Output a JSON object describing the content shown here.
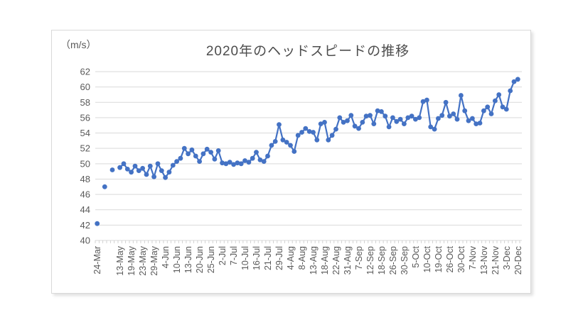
{
  "chart_data": {
    "type": "line",
    "title": "2020年のヘッドスピードの推移",
    "unit_label": "（m/s）",
    "ylim": [
      40,
      62
    ],
    "ytick_step": 2,
    "grid": true,
    "legend_position": "none",
    "x_label_interval": 3,
    "x_tick_labels": [
      "24-Mar",
      "",
      "13-May",
      "19-May",
      "23-May",
      "29-May",
      "4-Jun",
      "10-Jun",
      "13-Jun",
      "20-Jun",
      "25-Jun",
      "2-Jul",
      "7-Jul",
      "10-Jul",
      "16-Jul",
      "21-Jul",
      "29-Jul",
      "4-Aug",
      "8-Aug",
      "13-Aug",
      "18-Aug",
      "22-Aug",
      "31-Aug",
      "7-Sep",
      "12-Sep",
      "18-Sep",
      "26-Sep",
      "30-Sep",
      "5-Oct",
      "10-Oct",
      "19-Oct",
      "26-Oct",
      "30-Oct",
      "7-Nov",
      "13-Nov",
      "21-Nov",
      "3-Dec",
      "20-Dec"
    ],
    "values": [
      42.2,
      null,
      47.0,
      null,
      49.2,
      null,
      49.5,
      50.0,
      49.3,
      48.9,
      49.7,
      49.1,
      49.4,
      48.6,
      49.7,
      48.3,
      50.0,
      49.1,
      48.2,
      48.9,
      49.8,
      50.3,
      50.7,
      52.0,
      51.3,
      51.8,
      51.0,
      50.3,
      51.3,
      51.9,
      51.5,
      50.6,
      51.7,
      50.1,
      50.0,
      50.2,
      49.9,
      50.1,
      50.0,
      50.4,
      50.2,
      50.7,
      51.5,
      50.5,
      50.3,
      51.0,
      52.4,
      52.9,
      55.1,
      53.1,
      52.8,
      52.4,
      51.6,
      53.7,
      54.1,
      54.6,
      54.2,
      54.1,
      53.1,
      55.2,
      55.4,
      53.1,
      53.7,
      54.5,
      56.0,
      55.4,
      55.6,
      56.3,
      54.9,
      54.6,
      55.4,
      56.2,
      56.3,
      55.2,
      56.9,
      56.8,
      56.2,
      54.8,
      56.0,
      55.5,
      55.8,
      55.2,
      56.0,
      56.2,
      55.8,
      56.0,
      58.1,
      58.3,
      54.8,
      54.5,
      55.9,
      56.3,
      58.0,
      56.2,
      56.5,
      55.8,
      58.9,
      56.9,
      55.6,
      55.9,
      55.2,
      55.3,
      56.9,
      57.4,
      56.5,
      58.2,
      59.0,
      57.4,
      57.1,
      59.5,
      60.7,
      61.0
    ],
    "line_color": "#4472C4",
    "marker_color": "#4472C4",
    "gridline_color": "#d9d9d9",
    "tick_color": "#c9c9c9",
    "axis_text_color": "#595959",
    "title_color": "#4d4d4d"
  }
}
